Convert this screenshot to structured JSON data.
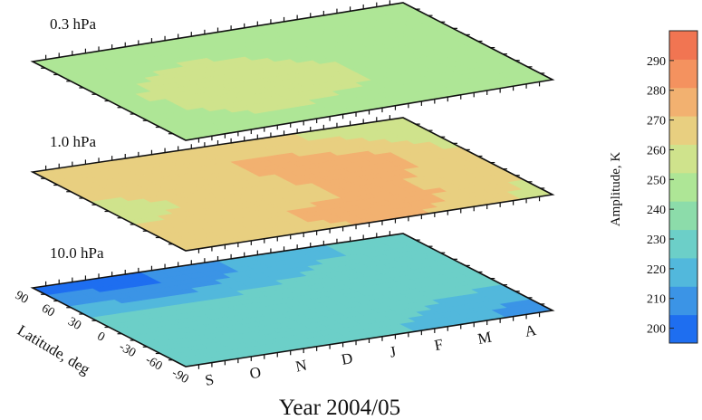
{
  "chart_data": {
    "type": "heatmap",
    "xlabel": "Year 2004/05",
    "ylabel": "Latitude, deg",
    "x_tick_labels": [
      "S",
      "O",
      "N",
      "D",
      "J",
      "F",
      "M",
      "A"
    ],
    "y_tick_labels": [
      "90",
      "60",
      "30",
      "0",
      "-30",
      "-60",
      "-90"
    ],
    "colorbar": {
      "label": "Amplitude, K",
      "ticks": [
        200,
        210,
        220,
        230,
        240,
        250,
        260,
        270,
        280,
        290
      ],
      "range": [
        195,
        300
      ],
      "colors": [
        "#1e6ef0",
        "#3b94e6",
        "#52b8dc",
        "#6ccfc8",
        "#8cdcaa",
        "#aee696",
        "#cfe38c",
        "#e8cf80",
        "#f2b170",
        "#f4925f",
        "#f17552"
      ]
    },
    "layers": [
      {
        "label": "0.3 hPa",
        "values": [
          [
            246,
            248,
            250,
            250,
            246,
            244,
            244,
            244
          ],
          [
            248,
            250,
            252,
            250,
            246,
            244,
            244,
            246
          ],
          [
            250,
            254,
            258,
            256,
            250,
            246,
            246,
            248
          ],
          [
            252,
            258,
            262,
            260,
            254,
            248,
            248,
            250
          ],
          [
            250,
            256,
            260,
            258,
            254,
            250,
            250,
            252
          ],
          [
            248,
            252,
            254,
            252,
            250,
            248,
            248,
            250
          ],
          [
            246,
            248,
            250,
            248,
            246,
            246,
            246,
            248
          ]
        ]
      },
      {
        "label": "1.0 hPa",
        "values": [
          [
            262,
            264,
            266,
            268,
            266,
            262,
            260,
            258
          ],
          [
            264,
            266,
            270,
            272,
            274,
            270,
            264,
            260
          ],
          [
            262,
            264,
            266,
            270,
            278,
            282,
            272,
            262
          ],
          [
            260,
            262,
            264,
            268,
            274,
            278,
            270,
            262
          ],
          [
            262,
            264,
            266,
            268,
            272,
            272,
            266,
            262
          ],
          [
            264,
            266,
            270,
            276,
            280,
            276,
            268,
            262
          ],
          [
            262,
            264,
            268,
            272,
            274,
            270,
            264,
            260
          ]
        ]
      },
      {
        "label": "10.0 hPa",
        "values": [
          [
            204,
            200,
            206,
            212,
            218,
            222,
            224,
            226
          ],
          [
            214,
            208,
            212,
            218,
            222,
            226,
            226,
            228
          ],
          [
            224,
            222,
            224,
            226,
            228,
            230,
            230,
            230
          ],
          [
            232,
            232,
            230,
            228,
            228,
            230,
            230,
            228
          ],
          [
            230,
            232,
            230,
            226,
            226,
            228,
            226,
            224
          ],
          [
            228,
            230,
            228,
            226,
            226,
            224,
            220,
            216
          ],
          [
            226,
            228,
            226,
            224,
            224,
            222,
            216,
            210
          ]
        ]
      }
    ]
  }
}
